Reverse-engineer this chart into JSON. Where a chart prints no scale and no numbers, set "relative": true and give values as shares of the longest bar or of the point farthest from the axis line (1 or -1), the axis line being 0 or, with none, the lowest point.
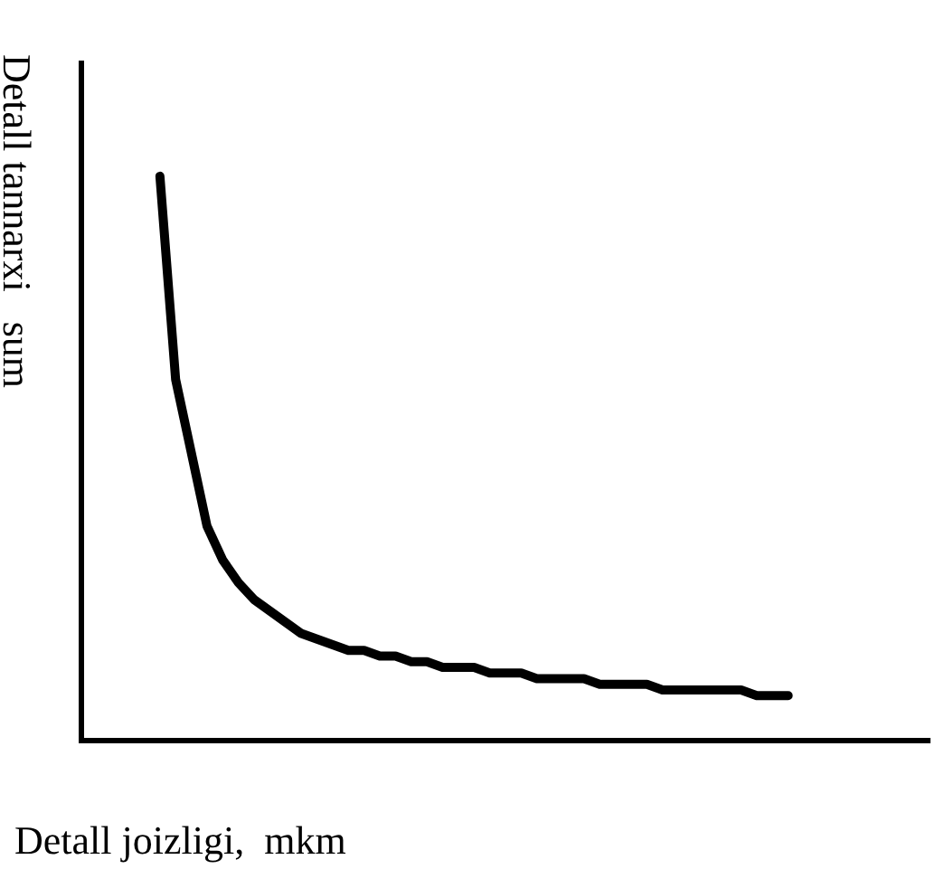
{
  "chart_data": {
    "type": "line",
    "relative": true,
    "xlabel": "Detall joizligi,  mkm",
    "ylabel": "Detall tannarxi   sum",
    "categories": [
      null,
      null,
      null,
      null,
      null,
      null,
      null,
      null,
      null,
      null,
      null,
      null,
      null,
      null,
      null,
      null,
      null,
      null,
      null,
      null,
      null,
      null,
      null,
      null,
      null,
      null,
      null,
      null,
      null,
      null,
      null,
      null,
      null,
      null,
      null,
      null,
      null,
      null,
      null,
      null,
      null,
      null,
      null,
      null,
      null,
      null,
      null,
      null,
      null,
      null,
      null,
      null,
      null,
      null,
      null
    ],
    "series": [
      {
        "color": "#000000",
        "values": [
          null,
          null,
          null,
          null,
          null,
          1.0,
          0.64,
          0.51,
          0.38,
          0.32,
          0.28,
          0.25,
          0.23,
          0.21,
          0.19,
          0.18,
          0.17,
          0.16,
          0.16,
          0.15,
          0.15,
          0.14,
          0.14,
          0.13,
          0.13,
          0.13,
          0.12,
          0.12,
          0.12,
          0.11,
          0.11,
          0.11,
          0.11,
          0.1,
          0.1,
          0.1,
          0.1,
          0.09,
          0.09,
          0.09,
          0.09,
          0.09,
          0.09,
          0.08,
          0.08,
          0.08,
          null,
          null,
          null,
          null,
          null,
          null,
          null,
          null,
          null
        ]
      }
    ],
    "legend": false,
    "grid": false,
    "marker": "none",
    "line_style": "solid"
  }
}
